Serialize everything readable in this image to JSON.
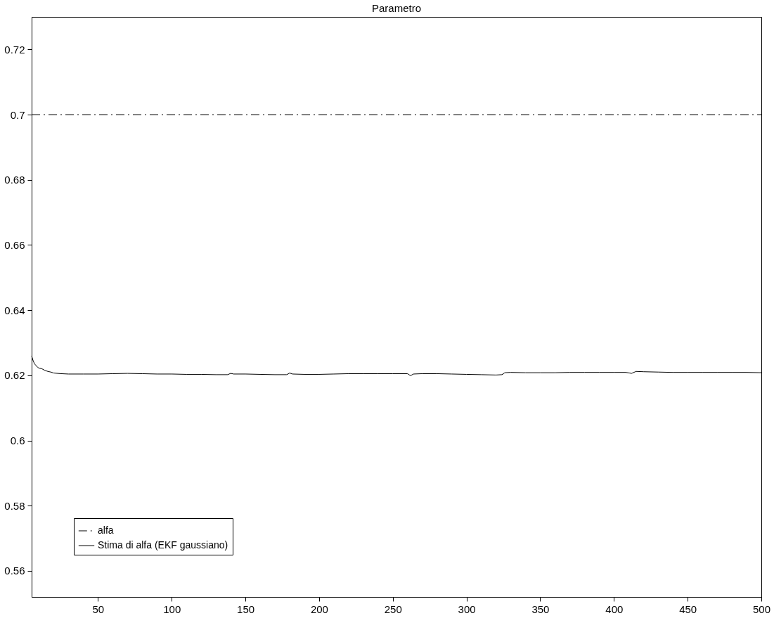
{
  "chart_data": {
    "type": "line",
    "title": "Parametro",
    "xlim": [
      5,
      500
    ],
    "xticks": [
      50,
      100,
      150,
      200,
      250,
      300,
      350,
      400,
      450,
      500
    ],
    "ylim": [
      0.552,
      0.73
    ],
    "yticks": [
      0.56,
      0.58,
      0.6,
      0.62,
      0.64,
      0.66,
      0.68,
      0.7,
      0.72
    ],
    "grid": false,
    "legend": "bottom left",
    "marker": "none",
    "series": [
      {
        "name": "alfa",
        "color": "#000000",
        "line_style": "dashed",
        "x": [
          5,
          500
        ],
        "values": [
          0.7,
          0.7
        ]
      },
      {
        "name": "Stima di alfa (EKF gaussiano)",
        "color": "#000000",
        "line_style": "solid",
        "x": [
          5,
          6,
          7,
          8,
          9,
          10,
          12,
          14,
          16,
          18,
          20,
          25,
          30,
          40,
          50,
          60,
          70,
          80,
          90,
          100,
          110,
          120,
          130,
          138,
          140,
          142,
          150,
          160,
          170,
          178,
          180,
          182,
          190,
          200,
          210,
          220,
          230,
          240,
          250,
          260,
          262,
          264,
          270,
          280,
          290,
          300,
          310,
          320,
          324,
          326,
          330,
          340,
          350,
          360,
          370,
          380,
          390,
          400,
          408,
          412,
          415,
          420,
          430,
          440,
          450,
          460,
          470,
          480,
          490,
          500
        ],
        "values": [
          0.626,
          0.6245,
          0.6235,
          0.623,
          0.6225,
          0.6222,
          0.622,
          0.6215,
          0.6212,
          0.621,
          0.6207,
          0.6205,
          0.6204,
          0.6204,
          0.6204,
          0.6205,
          0.6206,
          0.6205,
          0.6204,
          0.6204,
          0.6203,
          0.6203,
          0.6202,
          0.6202,
          0.6206,
          0.6204,
          0.6204,
          0.6203,
          0.6202,
          0.6202,
          0.6207,
          0.6204,
          0.6203,
          0.6203,
          0.6204,
          0.6205,
          0.6205,
          0.6205,
          0.6205,
          0.6205,
          0.6199,
          0.6204,
          0.6205,
          0.6205,
          0.6204,
          0.6203,
          0.6202,
          0.6201,
          0.6202,
          0.6208,
          0.6209,
          0.6208,
          0.6208,
          0.6208,
          0.6209,
          0.6209,
          0.6209,
          0.6209,
          0.6209,
          0.6206,
          0.6212,
          0.6211,
          0.621,
          0.6209,
          0.6209,
          0.6209,
          0.6209,
          0.6209,
          0.6209,
          0.6208
        ]
      }
    ]
  }
}
